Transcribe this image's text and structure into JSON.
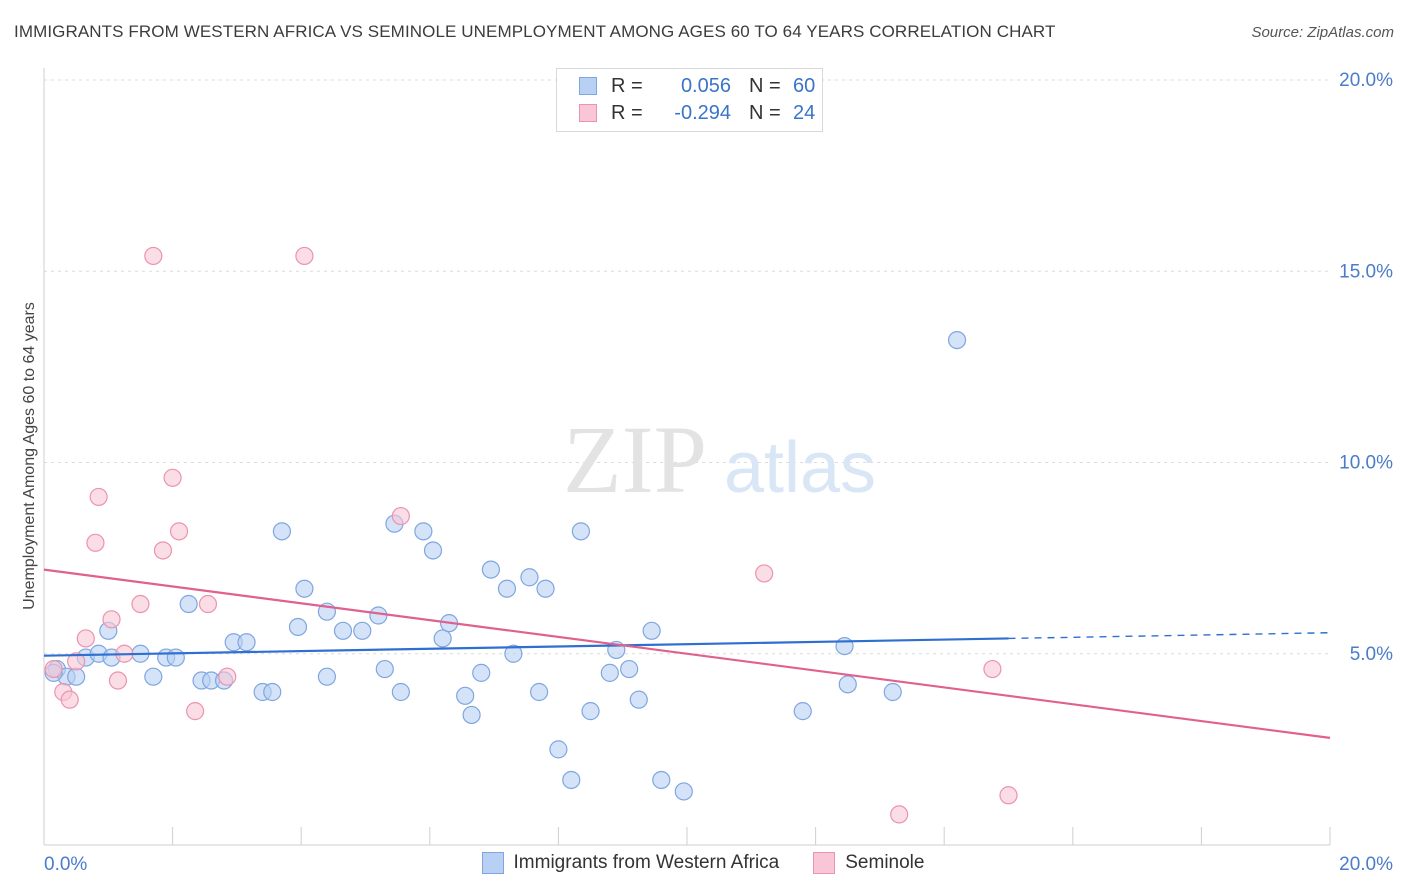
{
  "header": {
    "title": "IMMIGRANTS FROM WESTERN AFRICA VS SEMINOLE UNEMPLOYMENT AMONG AGES 60 TO 64 YEARS CORRELATION CHART",
    "source": "Source: ZipAtlas.com"
  },
  "watermark": {
    "zip": "ZIP",
    "atlas": "atlas"
  },
  "legend": {
    "rows": [
      {
        "r_label": "R =",
        "r_value": "0.056",
        "n_label": "N =",
        "n_value": "60"
      },
      {
        "r_label": "R =",
        "r_value": "-0.294",
        "n_label": "N =",
        "n_value": "24"
      }
    ]
  },
  "colors": {
    "blue_fill": "#b8d0f4",
    "blue_stroke": "#7fa6e0",
    "blue_line": "#2f6fd0",
    "pink_fill": "#f8c6d6",
    "pink_stroke": "#eb93b0",
    "pink_line": "#e0608e",
    "axis_text": "#4a7cc9",
    "grid": "#dcdcdc"
  },
  "chart_data": {
    "type": "scatter",
    "title": "IMMIGRANTS FROM WESTERN AFRICA VS SEMINOLE UNEMPLOYMENT AMONG AGES 60 TO 64 YEARS CORRELATION CHART",
    "xlabel": "",
    "ylabel": "Unemployment Among Ages 60 to 64 years",
    "xlim": [
      0,
      20
    ],
    "ylim": [
      0,
      20
    ],
    "x_tick_labels": [
      "0.0%",
      "20.0%"
    ],
    "y_tick_labels": [
      "5.0%",
      "10.0%",
      "15.0%",
      "20.0%"
    ],
    "y_ticks": [
      5,
      10,
      15,
      20
    ],
    "grid": "horizontal dashed",
    "legend_position": "top-center",
    "series": [
      {
        "name": "Immigrants from Western Africa",
        "color": "#b8d0f4",
        "r": 0.056,
        "n": 60,
        "trend": {
          "x0": 0,
          "y0": 4.95,
          "x1": 15,
          "y1": 5.4,
          "dash_to_x": 20,
          "dash_to_y": 5.55
        },
        "points": [
          [
            0.2,
            4.6
          ],
          [
            0.35,
            4.4
          ],
          [
            0.5,
            4.4
          ],
          [
            0.65,
            4.9
          ],
          [
            0.85,
            5.0
          ],
          [
            1.0,
            5.6
          ],
          [
            1.05,
            4.9
          ],
          [
            1.5,
            5.0
          ],
          [
            1.7,
            4.4
          ],
          [
            1.9,
            4.9
          ],
          [
            2.05,
            4.9
          ],
          [
            2.25,
            6.3
          ],
          [
            2.45,
            4.3
          ],
          [
            2.6,
            4.3
          ],
          [
            2.8,
            4.3
          ],
          [
            2.95,
            5.3
          ],
          [
            3.15,
            5.3
          ],
          [
            3.4,
            4.0
          ],
          [
            3.55,
            4.0
          ],
          [
            3.7,
            8.2
          ],
          [
            3.95,
            5.7
          ],
          [
            4.05,
            6.7
          ],
          [
            4.4,
            4.4
          ],
          [
            4.4,
            6.1
          ],
          [
            4.65,
            5.6
          ],
          [
            4.95,
            5.6
          ],
          [
            5.2,
            6.0
          ],
          [
            5.3,
            4.6
          ],
          [
            5.45,
            8.4
          ],
          [
            5.55,
            4.0
          ],
          [
            5.9,
            8.2
          ],
          [
            6.05,
            7.7
          ],
          [
            6.2,
            5.4
          ],
          [
            6.3,
            5.8
          ],
          [
            6.55,
            3.9
          ],
          [
            6.65,
            3.4
          ],
          [
            6.8,
            4.5
          ],
          [
            6.95,
            7.2
          ],
          [
            7.2,
            6.7
          ],
          [
            7.3,
            5.0
          ],
          [
            7.55,
            7.0
          ],
          [
            7.7,
            4.0
          ],
          [
            7.8,
            6.7
          ],
          [
            8.0,
            2.5
          ],
          [
            8.2,
            1.7
          ],
          [
            8.35,
            8.2
          ],
          [
            8.5,
            3.5
          ],
          [
            8.8,
            4.5
          ],
          [
            8.9,
            5.1
          ],
          [
            9.1,
            4.6
          ],
          [
            9.25,
            3.8
          ],
          [
            9.45,
            5.6
          ],
          [
            9.6,
            1.7
          ],
          [
            9.95,
            1.4
          ],
          [
            11.8,
            3.5
          ],
          [
            12.45,
            5.2
          ],
          [
            12.5,
            4.2
          ],
          [
            13.2,
            4.0
          ],
          [
            14.2,
            13.2
          ],
          [
            0.15,
            4.5
          ]
        ]
      },
      {
        "name": "Seminole",
        "color": "#f8c6d6",
        "r": -0.294,
        "n": 24,
        "trend": {
          "x0": 0,
          "y0": 7.2,
          "x1": 20,
          "y1": 2.8
        },
        "points": [
          [
            0.15,
            4.6
          ],
          [
            0.3,
            4.0
          ],
          [
            0.4,
            3.8
          ],
          [
            0.5,
            4.8
          ],
          [
            0.65,
            5.4
          ],
          [
            0.8,
            7.9
          ],
          [
            0.85,
            9.1
          ],
          [
            1.05,
            5.9
          ],
          [
            1.15,
            4.3
          ],
          [
            1.25,
            5.0
          ],
          [
            1.5,
            6.3
          ],
          [
            1.7,
            15.4
          ],
          [
            1.85,
            7.7
          ],
          [
            2.0,
            9.6
          ],
          [
            2.1,
            8.2
          ],
          [
            2.35,
            3.5
          ],
          [
            2.55,
            6.3
          ],
          [
            2.85,
            4.4
          ],
          [
            4.05,
            15.4
          ],
          [
            5.55,
            8.6
          ],
          [
            11.2,
            7.1
          ],
          [
            13.3,
            0.8
          ],
          [
            14.75,
            4.6
          ],
          [
            15.0,
            1.3
          ]
        ]
      }
    ]
  }
}
